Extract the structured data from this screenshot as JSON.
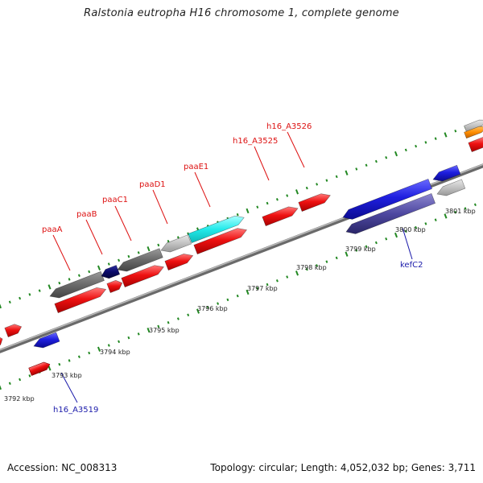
{
  "title": "Ralstonia eutropha H16 chromosome 1, complete genome",
  "accession": "Accession: NC_008313",
  "summary": "Topology: circular; Length: 4,052,032 bp; Genes: 3,711",
  "colors": {
    "forward_gene": "#ee1111",
    "reverse_gene": "#2222dd",
    "label_upper": "#dd1111",
    "label_lower": "#1a1aaa",
    "tick": "#228822",
    "backbone": "#8a8a8a"
  },
  "kbp_ticks": [
    "3792 kbp",
    "3793 kbp",
    "3794 kbp",
    "3795 kbp",
    "3796 kbp",
    "3797 kbp",
    "3798 kbp",
    "3799 kbp",
    "3800 kbp",
    "3801 kbp"
  ],
  "gene_labels_upper": [
    "paaA",
    "paaB",
    "paaC1",
    "paaD1",
    "paaE1",
    "h16_A3525",
    "h16_A3526"
  ],
  "gene_labels_lower": [
    "h16_A3519",
    "kefC2"
  ]
}
